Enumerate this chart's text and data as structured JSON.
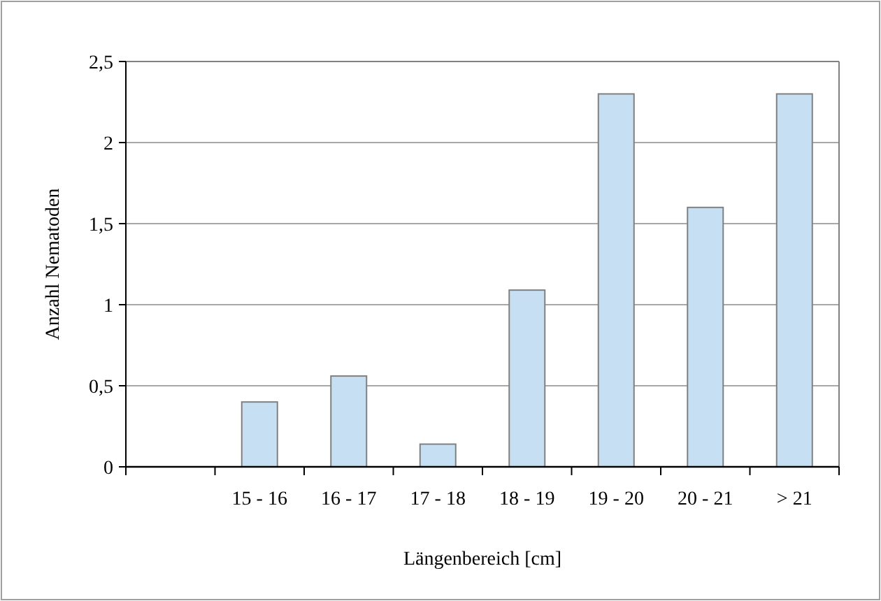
{
  "chart_data": {
    "type": "bar",
    "xlabel": "Längenbereich [cm]",
    "ylabel": "Anzahl Nematoden",
    "categories": [
      null,
      "15 - 16",
      "16 - 17",
      "17 - 18",
      "18 - 19",
      "19 - 20",
      "20 - 21",
      "> 21"
    ],
    "values": [
      null,
      0.4,
      0.56,
      0.14,
      1.09,
      2.3,
      1.6,
      2.3
    ],
    "color": "#c6dff2",
    "ylim": [
      0,
      2.5
    ],
    "yticks": [
      0,
      {
        "value": 0.5,
        "label": "0,5"
      },
      1,
      {
        "value": 1.5,
        "label": "1,5"
      },
      2,
      {
        "value": 2.5,
        "label": "2,5"
      }
    ],
    "grid": "y"
  }
}
